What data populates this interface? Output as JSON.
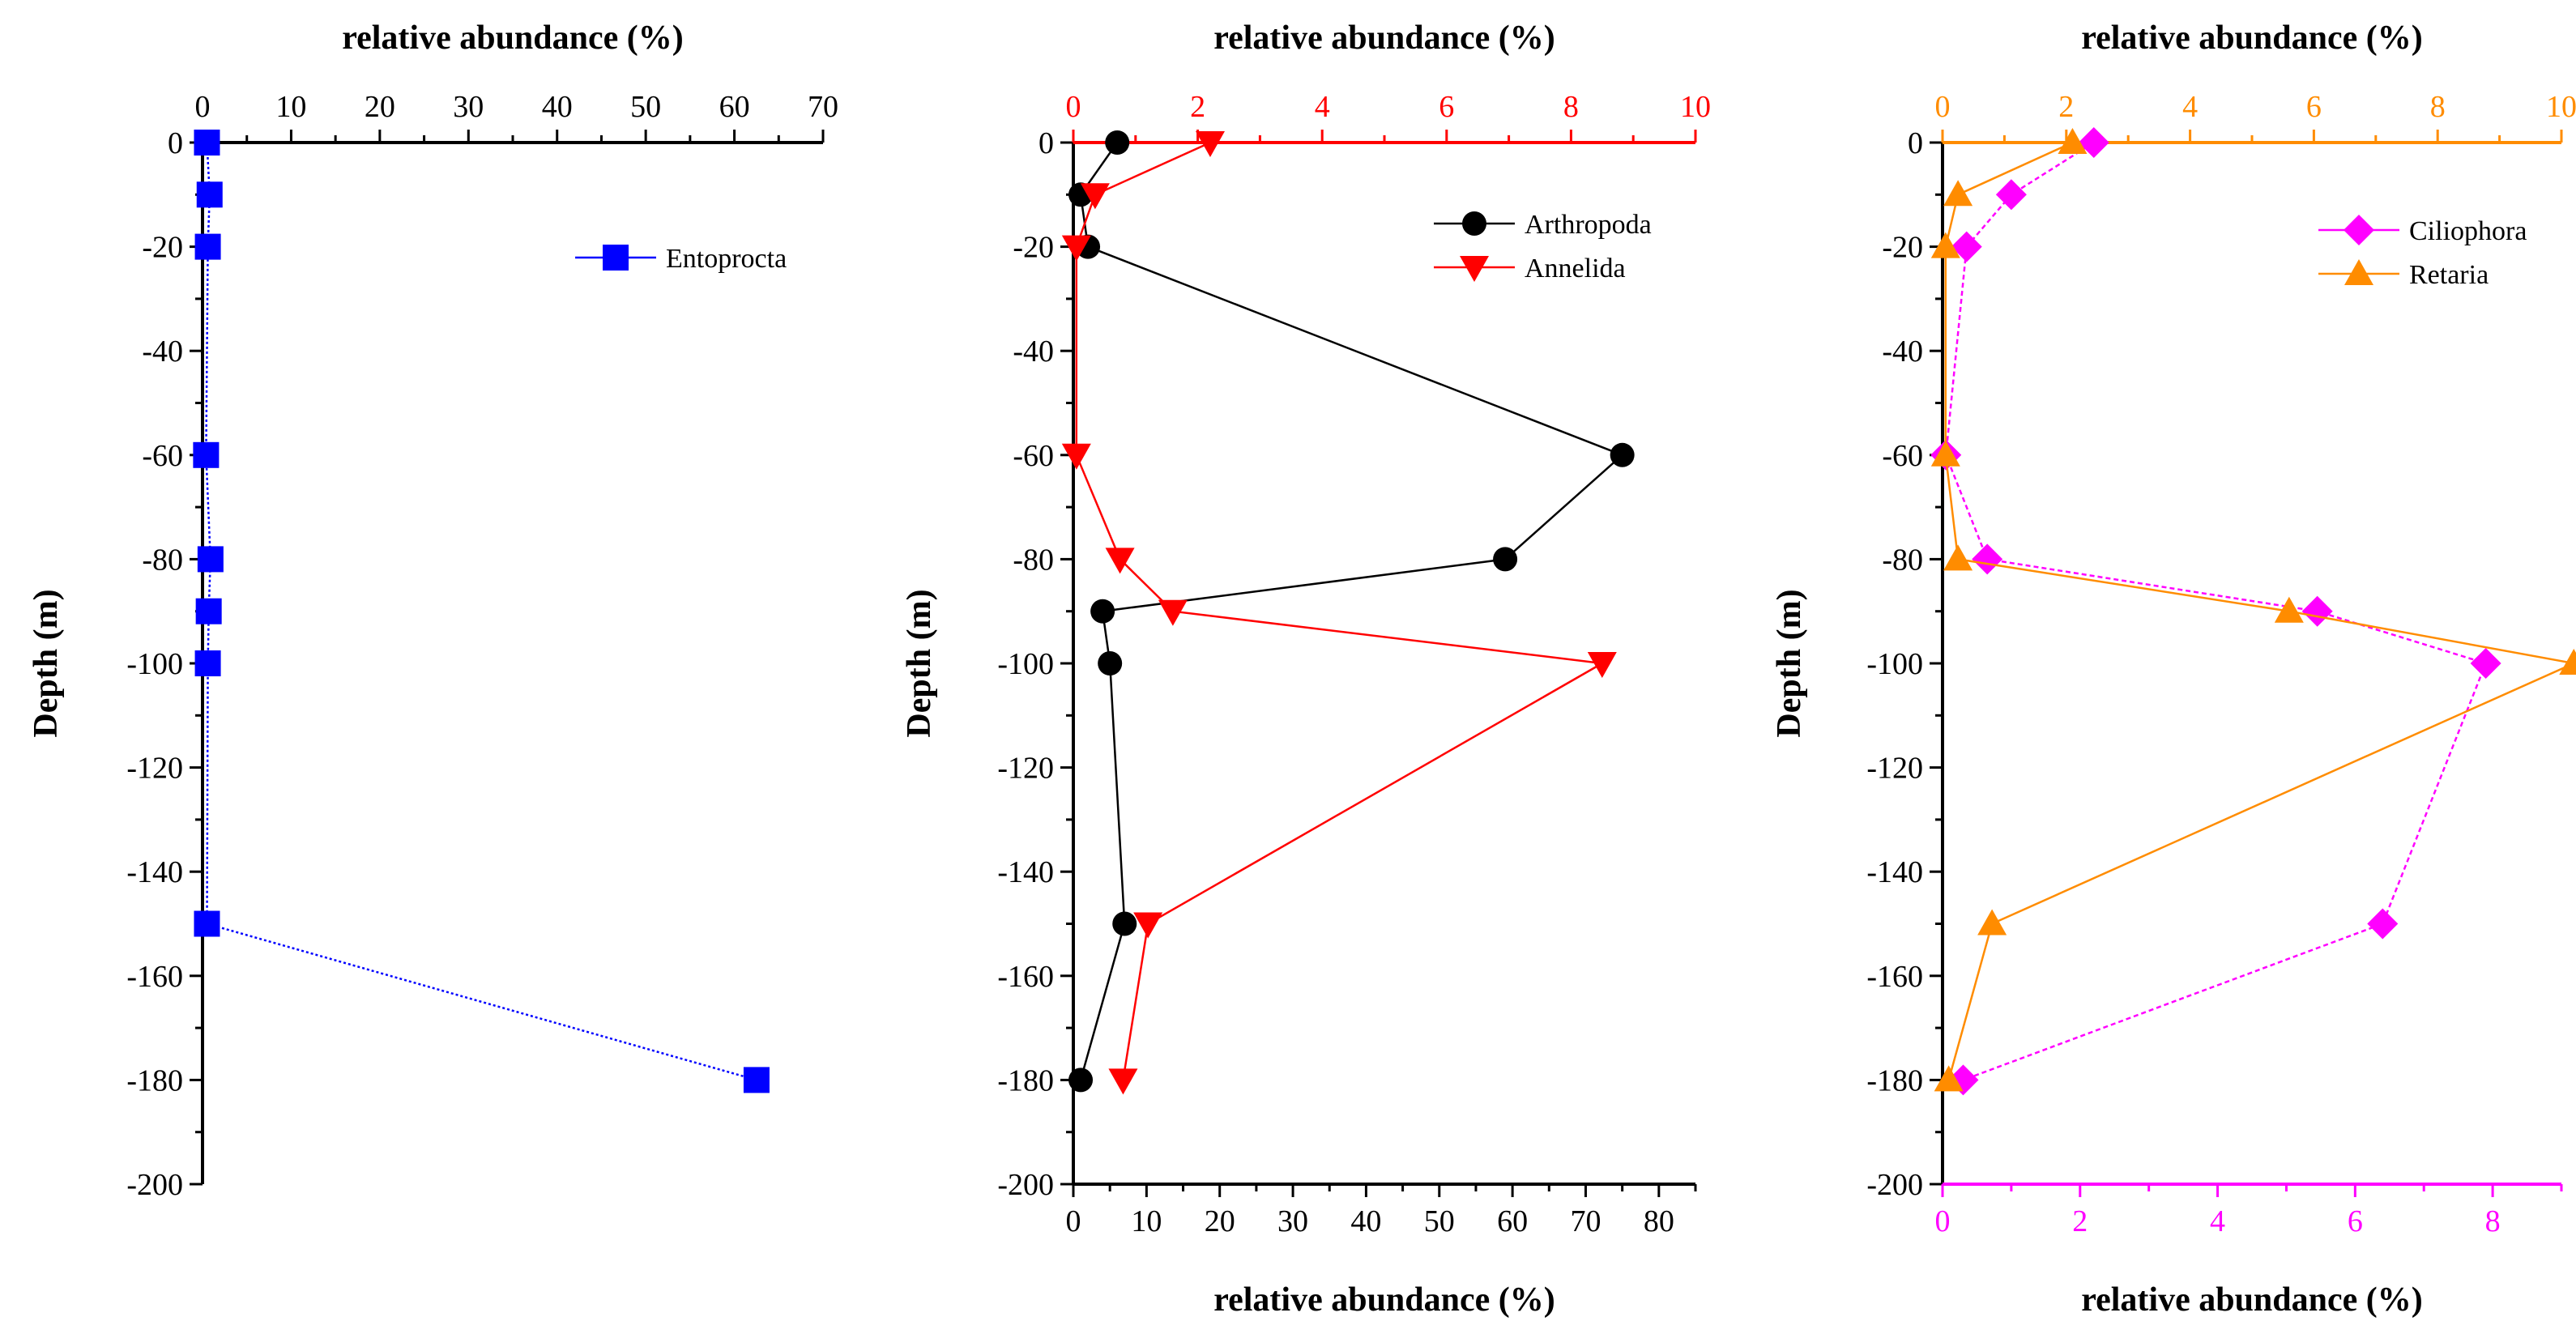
{
  "colors": {
    "entoprocta": "#0000ff",
    "arthropoda": "#000000",
    "annelida": "#ff0000",
    "ciliophora": "#ff00ff",
    "retaria": "#ff8c00"
  },
  "chart_data": [
    {
      "type": "line",
      "id": "panel-entoprocta",
      "top_axis": {
        "label": "relative abundance (%)",
        "range": [
          0,
          70
        ],
        "ticks": [
          "0",
          "10",
          "20",
          "30",
          "40",
          "50",
          "60",
          "70"
        ],
        "color": "#000000"
      },
      "ylabel": "Depth (m)",
      "y_range": [
        -200,
        0
      ],
      "y_ticks": [
        "0",
        "-20",
        "-40",
        "-60",
        "-80",
        "-100",
        "-120",
        "-140",
        "-160",
        "-180",
        "-200"
      ],
      "legend_position": "top-right",
      "series": [
        {
          "name": "Entoprocta",
          "axis": "top",
          "marker": "square",
          "color": "#0000ff",
          "dash": "3,3",
          "points": [
            {
              "x": 0.5,
              "y": 0
            },
            {
              "x": 0.8,
              "y": -10
            },
            {
              "x": 0.6,
              "y": -20
            },
            {
              "x": 0.4,
              "y": -60
            },
            {
              "x": 0.9,
              "y": -80
            },
            {
              "x": 0.7,
              "y": -90
            },
            {
              "x": 0.6,
              "y": -100
            },
            {
              "x": 0.5,
              "y": -150
            },
            {
              "x": 62.5,
              "y": -180
            }
          ]
        }
      ]
    },
    {
      "type": "line",
      "id": "panel-arthropoda-annelida",
      "top_axis": {
        "label": "relative abundance (%)",
        "range": [
          0,
          10
        ],
        "ticks": [
          "0",
          "2",
          "4",
          "6",
          "8",
          "10"
        ],
        "color": "#ff0000"
      },
      "bottom_axis": {
        "label": "relative abundance (%)",
        "range": [
          0,
          85
        ],
        "ticks": [
          "0",
          "10",
          "20",
          "30",
          "40",
          "50",
          "60",
          "70",
          "80"
        ],
        "color": "#000000"
      },
      "ylabel": "Depth (m)",
      "y_range": [
        -200,
        0
      ],
      "y_ticks": [
        "0",
        "-20",
        "-40",
        "-60",
        "-80",
        "-100",
        "-120",
        "-140",
        "-160",
        "-180",
        "-200"
      ],
      "legend_position": "top-right",
      "series": [
        {
          "name": "Arthropoda",
          "axis": "bottom",
          "marker": "circle",
          "color": "#000000",
          "dash": "",
          "points": [
            {
              "x": 6,
              "y": 0
            },
            {
              "x": 1,
              "y": -10
            },
            {
              "x": 2,
              "y": -20
            },
            {
              "x": 75,
              "y": -60
            },
            {
              "x": 59,
              "y": -80
            },
            {
              "x": 4,
              "y": -90
            },
            {
              "x": 5,
              "y": -100
            },
            {
              "x": 7,
              "y": -150
            },
            {
              "x": 1,
              "y": -180
            }
          ]
        },
        {
          "name": "Annelida",
          "axis": "top",
          "marker": "triangle-down",
          "color": "#ff0000",
          "dash": "",
          "points": [
            {
              "x": 2.2,
              "y": 0
            },
            {
              "x": 0.35,
              "y": -10
            },
            {
              "x": 0.05,
              "y": -20
            },
            {
              "x": 0.05,
              "y": -60
            },
            {
              "x": 0.75,
              "y": -80
            },
            {
              "x": 1.6,
              "y": -90
            },
            {
              "x": 8.5,
              "y": -100
            },
            {
              "x": 1.2,
              "y": -150
            },
            {
              "x": 0.8,
              "y": -180
            }
          ]
        }
      ]
    },
    {
      "type": "line",
      "id": "panel-ciliophora-retaria",
      "top_axis": {
        "label": "relative abundance (%)",
        "range": [
          0,
          10
        ],
        "ticks": [
          "0",
          "2",
          "4",
          "6",
          "8",
          "10"
        ],
        "color": "#ff8c00"
      },
      "bottom_axis": {
        "label": "relative abundance (%)",
        "range": [
          0,
          9
        ],
        "ticks": [
          "0",
          "2",
          "4",
          "6",
          "8"
        ],
        "color": "#ff00ff"
      },
      "ylabel": "Depth (m)",
      "y_range": [
        -200,
        0
      ],
      "y_ticks": [
        "0",
        "-20",
        "-40",
        "-60",
        "-80",
        "-100",
        "-120",
        "-140",
        "-160",
        "-180",
        "-200"
      ],
      "legend_position": "top-right",
      "series": [
        {
          "name": "Ciliophora",
          "axis": "bottom",
          "marker": "diamond",
          "color": "#ff00ff",
          "dash": "6,4",
          "points": [
            {
              "x": 2.2,
              "y": 0
            },
            {
              "x": 1.0,
              "y": -10
            },
            {
              "x": 0.35,
              "y": -20
            },
            {
              "x": 0.05,
              "y": -60
            },
            {
              "x": 0.65,
              "y": -80
            },
            {
              "x": 5.45,
              "y": -90
            },
            {
              "x": 7.9,
              "y": -100
            },
            {
              "x": 6.4,
              "y": -150
            },
            {
              "x": 0.3,
              "y": -180
            }
          ]
        },
        {
          "name": "Retaria",
          "axis": "top",
          "marker": "triangle-up",
          "color": "#ff8c00",
          "dash": "",
          "points": [
            {
              "x": 2.1,
              "y": 0
            },
            {
              "x": 0.25,
              "y": -10
            },
            {
              "x": 0.05,
              "y": -20
            },
            {
              "x": 0.05,
              "y": -60
            },
            {
              "x": 0.25,
              "y": -80
            },
            {
              "x": 5.6,
              "y": -90
            },
            {
              "x": 10.2,
              "y": -100
            },
            {
              "x": 0.8,
              "y": -150
            },
            {
              "x": 0.1,
              "y": -180
            }
          ]
        }
      ]
    }
  ]
}
